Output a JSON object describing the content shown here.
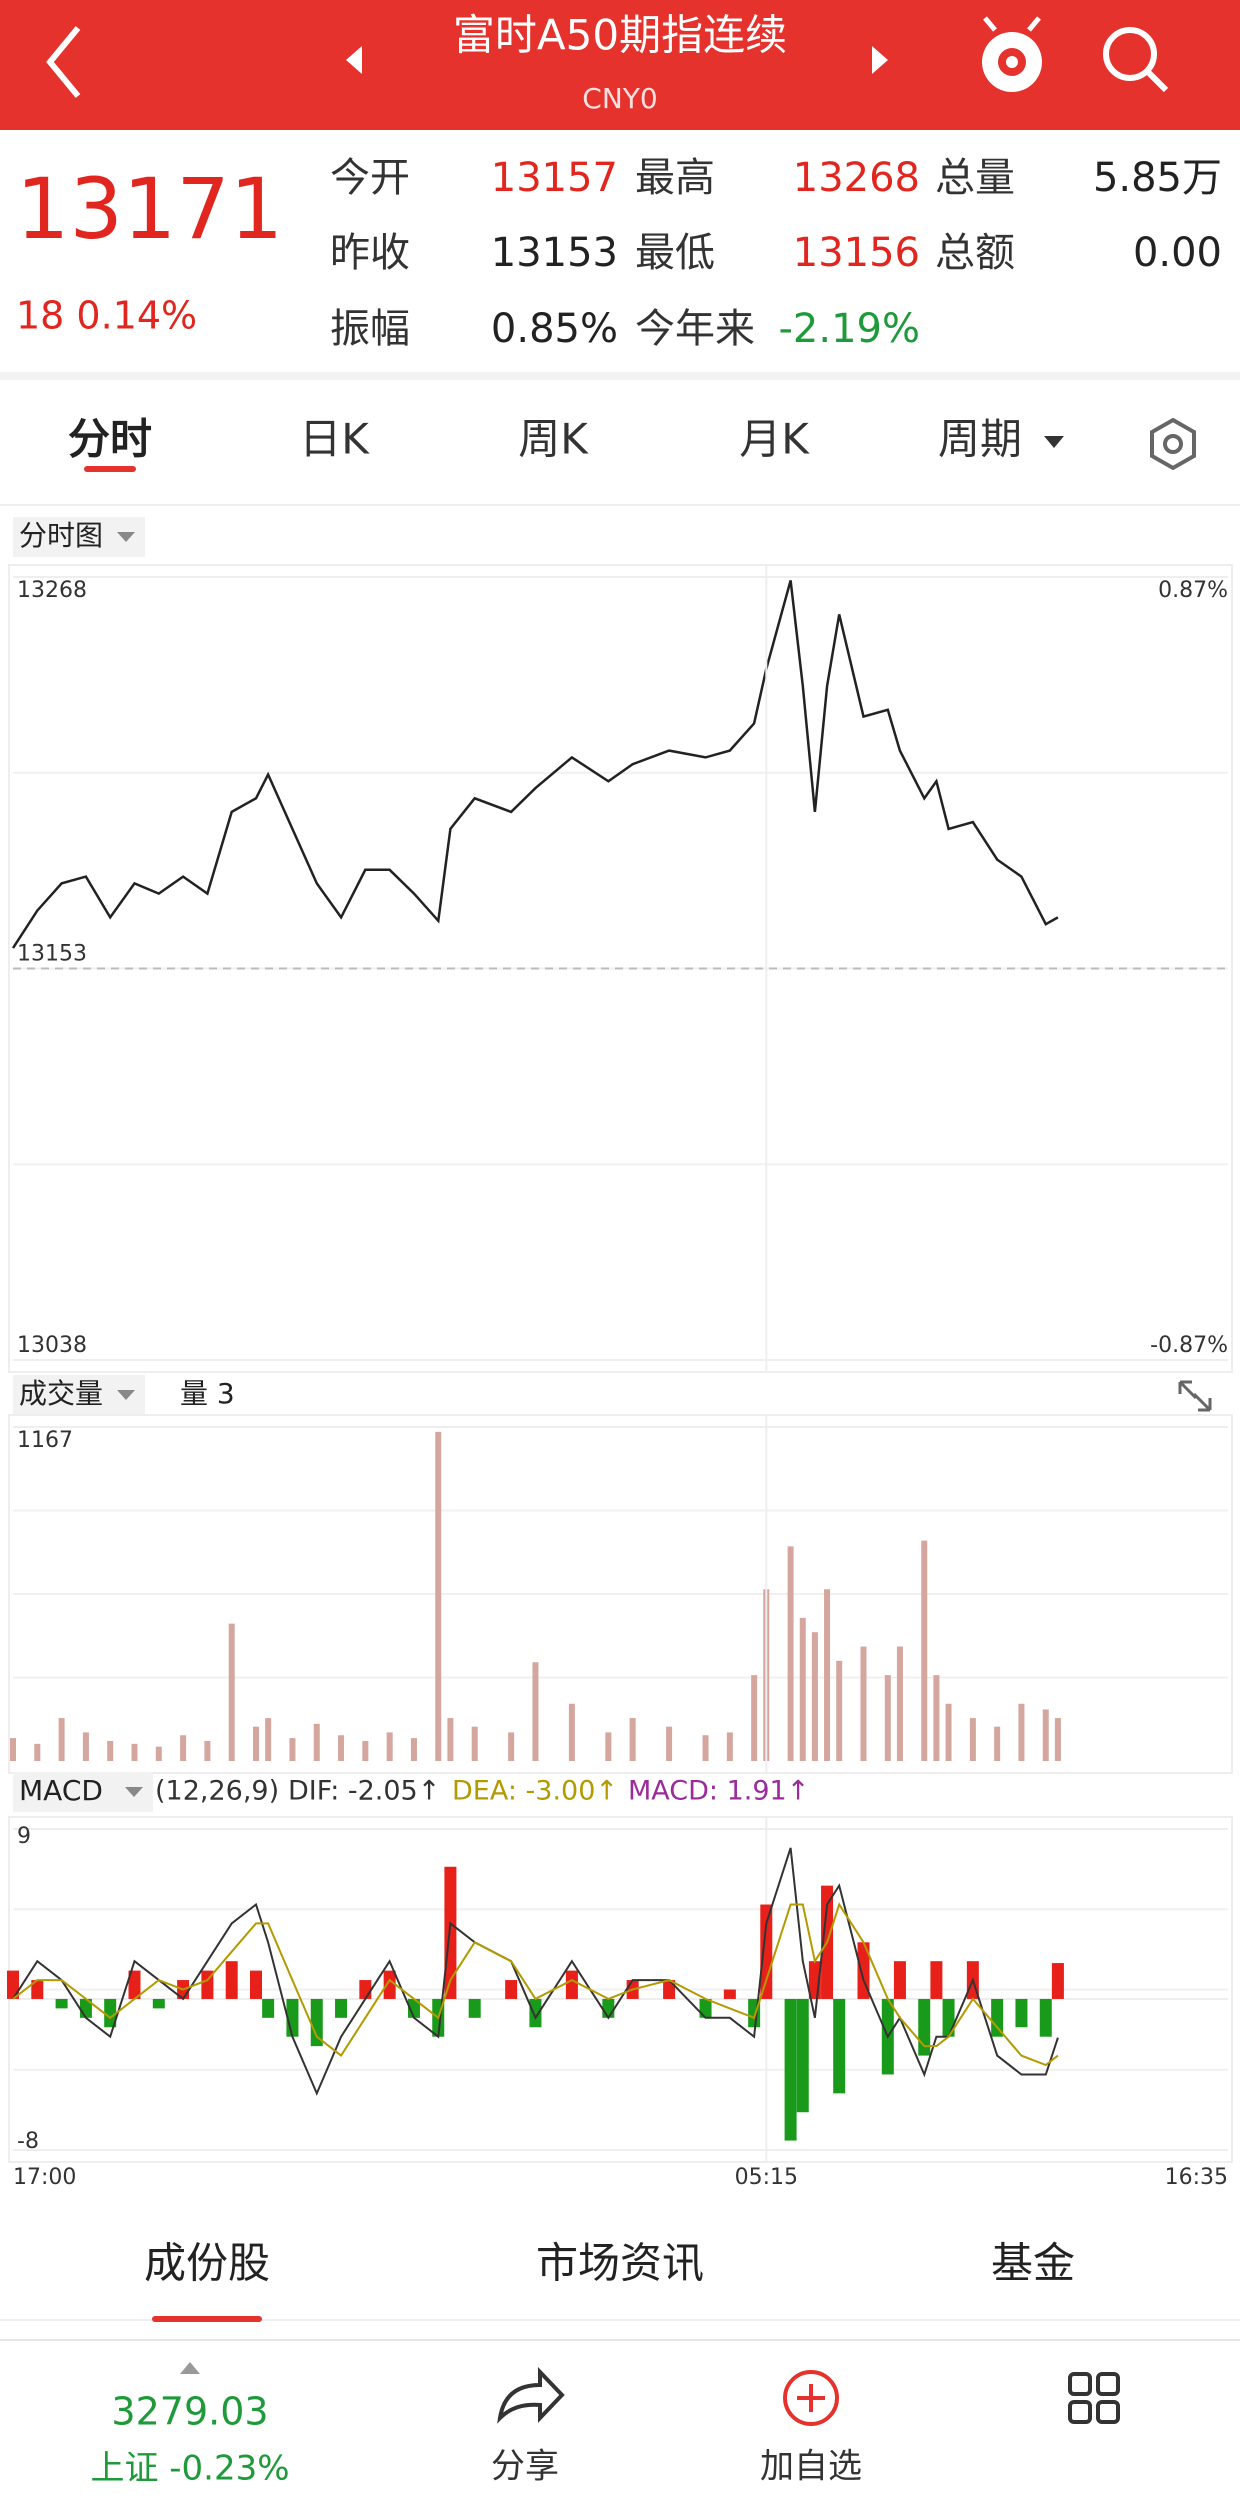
{
  "header": {
    "title": "富时A50期指连续",
    "code": "CNY0"
  },
  "quote": {
    "price": "13171",
    "change": "18 0.14%",
    "fields": [
      {
        "label": "今开",
        "value": "13157",
        "color": "#e0261f"
      },
      {
        "label": "最高",
        "value": "13268",
        "color": "#e0261f"
      },
      {
        "label": "总量",
        "value": "5.85万",
        "color": "#222222"
      },
      {
        "label": "昨收",
        "value": "13153",
        "color": "#222222"
      },
      {
        "label": "最低",
        "value": "13156",
        "color": "#e0261f"
      },
      {
        "label": "总额",
        "value": "0.00",
        "color": "#222222"
      },
      {
        "label": "振幅",
        "value": "0.85%",
        "color": "#222222"
      },
      {
        "label": "今年来",
        "value": "-2.19%",
        "color": "#1f9a3a"
      }
    ]
  },
  "tabs": [
    "分时",
    "日K",
    "周K",
    "月K",
    "周期"
  ],
  "chart_data": [
    {
      "type": "line",
      "label": "分时图",
      "color": "#222222",
      "x": [
        0,
        2,
        4,
        6,
        8,
        10,
        12,
        14,
        16,
        18,
        20,
        21,
        23,
        25,
        27,
        29,
        31,
        33,
        35,
        36,
        38,
        41,
        43,
        46,
        49,
        51,
        54,
        57,
        59,
        61,
        62,
        64,
        65,
        66,
        67,
        68,
        70,
        72,
        73,
        75,
        76,
        77,
        79,
        81,
        83,
        85,
        86
      ],
      "values": [
        13159,
        13170,
        13178,
        13180,
        13168,
        13178,
        13175,
        13180,
        13175,
        13199,
        13203,
        13210,
        13194,
        13178,
        13168,
        13182,
        13182,
        13175,
        13167,
        13194,
        13203,
        13199,
        13206,
        13215,
        13208,
        13213,
        13217,
        13215,
        13217,
        13225,
        13241,
        13267,
        13236,
        13199,
        13236,
        13257,
        13227,
        13229,
        13217,
        13203,
        13208,
        13194,
        13196,
        13185,
        13180,
        13166,
        13168
      ],
      "xlim": [
        0,
        100
      ],
      "ylim": [
        13038,
        13268
      ],
      "yticks": [
        13268,
        13153,
        13038
      ],
      "y2lim": [
        -0.87,
        0.87
      ],
      "y2ticks": [
        {
          "value": 0.87,
          "label": "0.87%"
        },
        {
          "value": -0.87,
          "label": "-0.87%"
        }
      ]
    },
    {
      "type": "bar",
      "label": "成交量",
      "sublabel": "量 3",
      "color": "#d4a69e",
      "x": [
        0,
        2,
        4,
        6,
        8,
        10,
        12,
        14,
        16,
        18,
        20,
        21,
        23,
        25,
        27,
        29,
        31,
        33,
        35,
        36,
        38,
        41,
        43,
        46,
        49,
        51,
        54,
        57,
        59,
        61,
        62,
        64,
        65,
        66,
        67,
        68,
        70,
        72,
        73,
        75,
        76,
        77,
        79,
        81,
        83,
        85,
        86
      ],
      "values": [
        80,
        60,
        150,
        100,
        70,
        60,
        50,
        90,
        70,
        480,
        120,
        150,
        80,
        130,
        90,
        70,
        100,
        80,
        1150,
        150,
        120,
        100,
        345,
        200,
        100,
        150,
        120,
        90,
        100,
        300,
        600,
        750,
        500,
        450,
        600,
        350,
        400,
        300,
        400,
        770,
        300,
        200,
        150,
        120,
        200,
        180,
        150
      ],
      "xlim": [
        0,
        100
      ],
      "ylim": [
        0,
        1167
      ],
      "yticks": [
        1167
      ]
    },
    {
      "type": "macd",
      "label": "MACD",
      "params": "(12,26,9)",
      "legend": [
        {
          "text": "DIF: -2.05↑",
          "color": "#333333"
        },
        {
          "text": "DEA: -3.00↑",
          "color": "#b39a00"
        },
        {
          "text": "MACD: 1.91↑",
          "color": "#9b2a9b"
        }
      ],
      "up_color": "#e8201a",
      "down_color": "#1a9a1a",
      "x": [
        0,
        2,
        4,
        6,
        8,
        10,
        12,
        14,
        16,
        18,
        20,
        21,
        23,
        25,
        27,
        29,
        31,
        33,
        35,
        36,
        38,
        41,
        43,
        46,
        49,
        51,
        54,
        57,
        59,
        61,
        62,
        64,
        65,
        66,
        67,
        68,
        70,
        72,
        73,
        75,
        76,
        77,
        79,
        81,
        83,
        85,
        86
      ],
      "series": [
        {
          "values": [
            1.5,
            1,
            -0.5,
            -1,
            -1.5,
            1.5,
            -0.5,
            1,
            1.5,
            2,
            1.5,
            -1,
            -2,
            -2.5,
            -1,
            1,
            1.5,
            -1,
            -2,
            7,
            -1,
            1,
            -1.5,
            1.5,
            -1,
            1,
            1,
            -1,
            0.5,
            -1.5,
            5,
            -7.5,
            -6,
            2,
            6,
            -5,
            3,
            -4,
            2,
            -3,
            2,
            -2,
            2,
            -2,
            -1.5,
            -2,
            1.9
          ]
        },
        {
          "color": "#333333",
          "values": [
            0,
            2,
            1,
            -1,
            -2,
            2,
            1,
            0,
            2,
            4,
            5,
            3,
            -2,
            -5,
            -2,
            0,
            2,
            -1,
            -2,
            4,
            3,
            2,
            -1,
            2,
            -1,
            1,
            1,
            -1,
            -1,
            -2,
            4,
            8,
            2,
            -1,
            5,
            6,
            1,
            -2,
            -1,
            -4,
            -2,
            -2,
            1,
            -3,
            -4,
            -4,
            -2.05
          ]
        },
        {
          "color": "#b39a00",
          "values": [
            0,
            1,
            1,
            0,
            -1,
            0,
            1,
            0.5,
            1,
            2.5,
            4,
            4,
            1,
            -2,
            -3,
            -1,
            1,
            0,
            -1,
            1,
            3,
            2,
            0,
            1,
            0,
            0.5,
            1,
            0,
            -0.5,
            -1,
            1,
            5,
            5,
            2,
            3,
            5,
            3,
            0,
            -1,
            -2.5,
            -2.5,
            -2,
            0,
            -1.5,
            -3,
            -3.5,
            -3
          ]
        }
      ],
      "xlim": [
        0,
        100
      ],
      "ylim": [
        -8,
        9
      ],
      "yticks": [
        9,
        -8
      ],
      "xticks": [
        {
          "value": 0,
          "label": "17:00"
        },
        {
          "value": 62,
          "label": "05:15"
        },
        {
          "value": 100,
          "label": "16:35"
        }
      ]
    }
  ],
  "bottom_tabs": [
    "成份股",
    "市场资讯",
    "基金"
  ],
  "footer": {
    "index_value": "3279.03",
    "index_change": "上证 -0.23%",
    "actions": [
      "分享",
      "加自选"
    ]
  }
}
